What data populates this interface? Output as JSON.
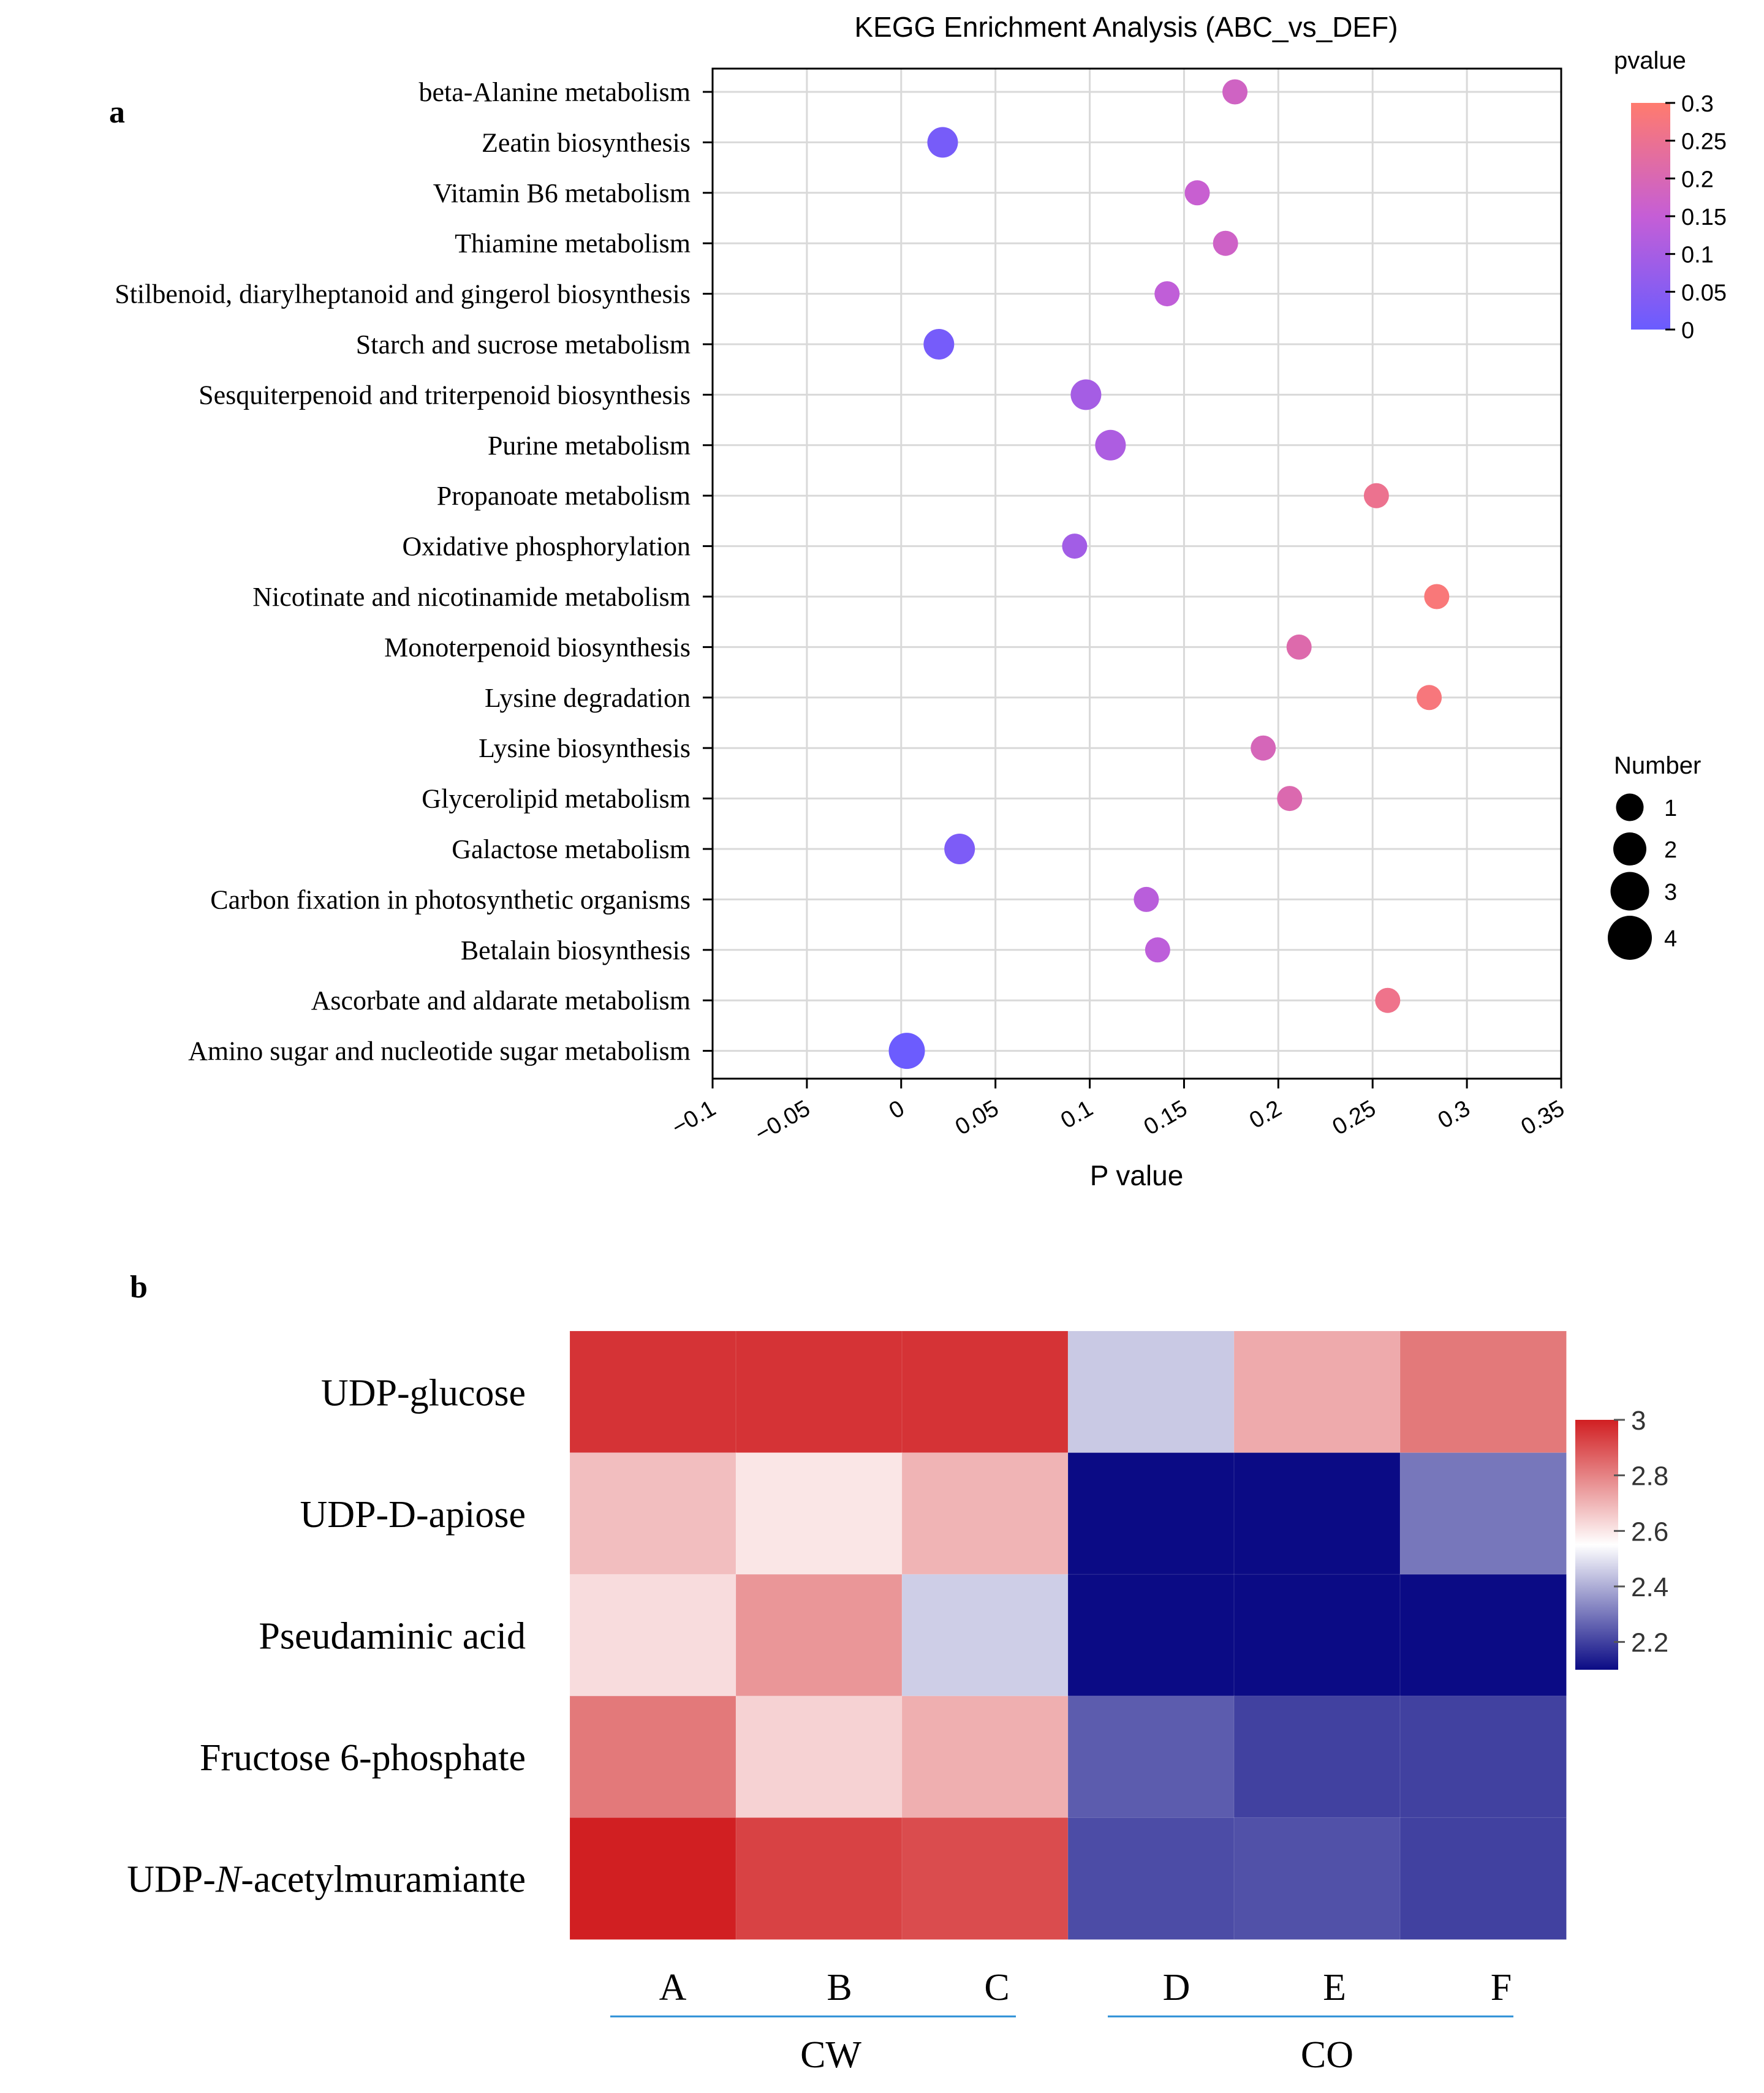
{
  "chart_data": [
    {
      "panel": "a",
      "type": "scatter",
      "title": "KEGG Enrichment Analysis (ABC_vs_DEF)",
      "xlabel": "P value",
      "ylabel": "",
      "xlim": [
        -0.1,
        0.35
      ],
      "xticks": [
        -0.1,
        -0.05,
        0,
        0.05,
        0.1,
        0.15,
        0.2,
        0.25,
        0.3,
        0.35
      ],
      "xtick_labels": [
        "−0.1",
        "−0.05",
        "0",
        "0.05",
        "0.1",
        "0.15",
        "0.2",
        "0.25",
        "0.3",
        "0.35"
      ],
      "grid": true,
      "categories": [
        "beta-Alanine metabolism",
        "Zeatin biosynthesis",
        "Vitamin B6 metabolism",
        "Thiamine metabolism",
        "Stilbenoid, diarylheptanoid and gingerol biosynthesis",
        "Starch and sucrose metabolism",
        "Sesquiterpenoid and triterpenoid biosynthesis",
        "Purine metabolism",
        "Propanoate metabolism",
        "Oxidative phosphorylation",
        "Nicotinate and nicotinamide metabolism",
        "Monoterpenoid biosynthesis",
        "Lysine degradation",
        "Lysine biosynthesis",
        "Glycerolipid metabolism",
        "Galactose metabolism",
        "Carbon fixation in photosynthetic organisms",
        "Betalain biosynthesis",
        "Ascorbate and aldarate metabolism",
        "Amino sugar and nucleotide sugar metabolism"
      ],
      "pvalues": [
        0.177,
        0.022,
        0.157,
        0.172,
        0.141,
        0.02,
        0.098,
        0.111,
        0.252,
        0.092,
        0.284,
        0.211,
        0.28,
        0.192,
        0.206,
        0.031,
        0.13,
        0.136,
        0.258,
        0.003
      ],
      "numbers": [
        1,
        2,
        1,
        1,
        1,
        2,
        2,
        2,
        1,
        1,
        1,
        1,
        1,
        1,
        1,
        2,
        1,
        1,
        1,
        3
      ],
      "color_legend": {
        "title": "pvalue",
        "range": [
          0,
          0.3
        ],
        "ticks": [
          "0.3",
          "0.25",
          "0.2",
          "0.15",
          "0.1",
          "0.05",
          "0"
        ],
        "low_color": "#6a5cff",
        "high_color": "#ff7b6e"
      },
      "size_legend": {
        "title": "Number",
        "values": [
          1,
          2,
          3,
          4
        ],
        "labels": [
          "1",
          "2",
          "3",
          "4"
        ]
      }
    },
    {
      "panel": "b",
      "type": "heatmap",
      "title": "",
      "rows": [
        "UDP-glucose",
        "UDP-D-apiose",
        "Pseudaminic acid",
        "Fructose 6-phosphate",
        "UDP-N-acetylmuramiante"
      ],
      "row_label_parts": [
        [
          {
            "text": "UDP-glucose",
            "italic": false
          }
        ],
        [
          {
            "text": "UDP-D-apiose",
            "italic": false
          }
        ],
        [
          {
            "text": "Pseudaminic acid",
            "italic": false
          }
        ],
        [
          {
            "text": "Fructose 6-phosphate",
            "italic": false
          }
        ],
        [
          {
            "text": "UDP-",
            "italic": false
          },
          {
            "text": "N",
            "italic": true
          },
          {
            "text": "-acetylmuramiante",
            "italic": false
          }
        ]
      ],
      "columns": [
        "A",
        "B",
        "C",
        "D",
        "E",
        "F"
      ],
      "groups": [
        {
          "name": "CW",
          "columns": [
            "A",
            "B",
            "C"
          ]
        },
        {
          "name": "CO",
          "columns": [
            "D",
            "E",
            "F"
          ]
        }
      ],
      "values": [
        [
          2.96,
          2.96,
          2.96,
          2.45,
          2.72,
          2.82
        ],
        [
          2.68,
          2.6,
          2.7,
          2.1,
          2.1,
          2.3
        ],
        [
          2.62,
          2.76,
          2.46,
          2.1,
          2.1,
          2.1
        ],
        [
          2.82,
          2.64,
          2.71,
          2.25,
          2.2,
          2.2
        ],
        [
          3.0,
          2.93,
          2.91,
          2.22,
          2.23,
          2.2
        ]
      ],
      "colorbar": {
        "range": [
          2.1,
          3.0
        ],
        "ticks": [
          3.0,
          2.8,
          2.6,
          2.4,
          2.2
        ],
        "tick_labels": [
          "3",
          "2.8",
          "2.6",
          "2.4",
          "2.2"
        ],
        "low_color": "#0b0b85",
        "mid_color": "#ffffff",
        "high_color": "#d11f22",
        "mid_value": 2.55
      }
    }
  ],
  "panel_labels": {
    "a": "a",
    "b": "b"
  },
  "colors": {
    "axis": "#000000",
    "grid": "#d9d9d9",
    "group_line": "#2b8fd6"
  }
}
